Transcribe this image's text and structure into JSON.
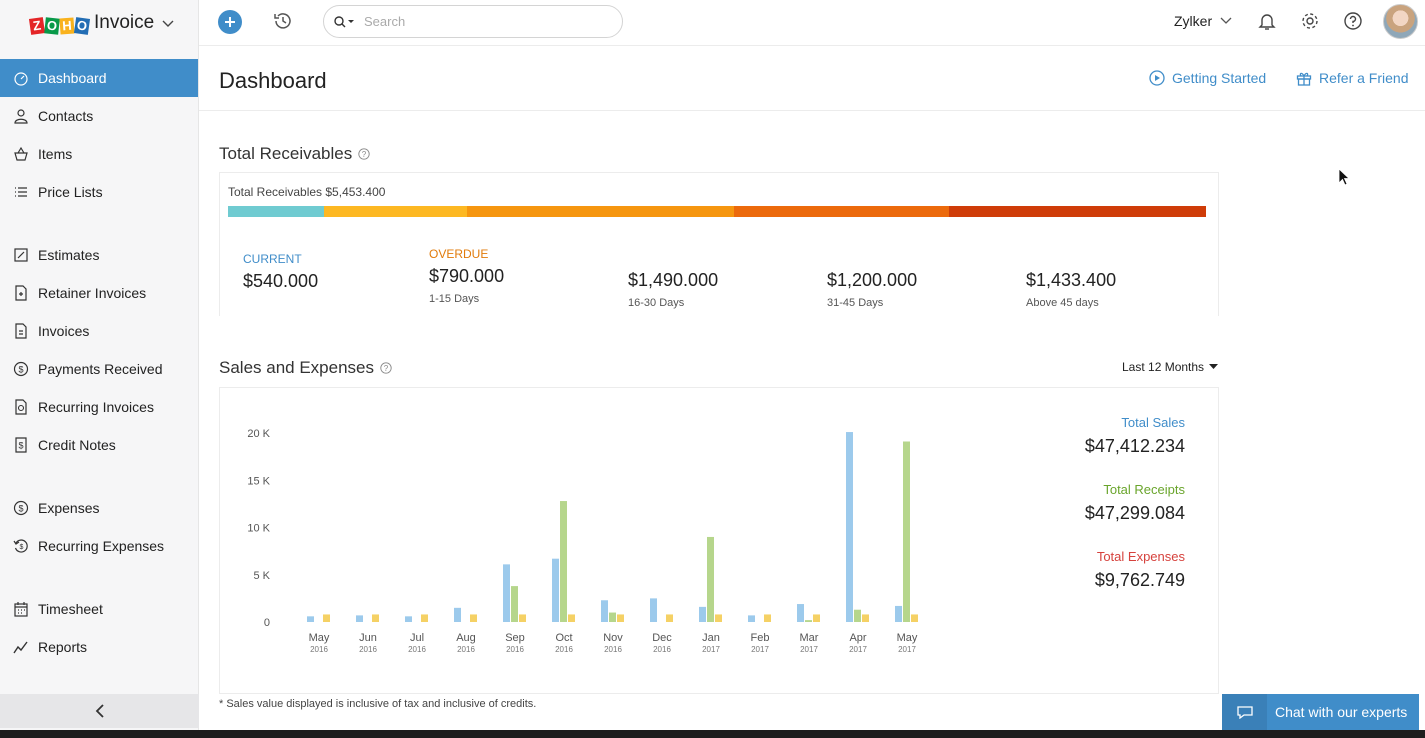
{
  "brand": {
    "logo_letters": [
      "Z",
      "O",
      "H",
      "O"
    ],
    "product": "Invoice"
  },
  "sidebar": {
    "groups": [
      [
        {
          "label": "Dashboard",
          "icon": "dashboard-icon",
          "active": true
        },
        {
          "label": "Contacts",
          "icon": "contacts-icon"
        },
        {
          "label": "Items",
          "icon": "items-icon"
        },
        {
          "label": "Price Lists",
          "icon": "price-list-icon"
        }
      ],
      [
        {
          "label": "Estimates",
          "icon": "estimates-icon"
        },
        {
          "label": "Retainer Invoices",
          "icon": "retainer-invoice-icon"
        },
        {
          "label": "Invoices",
          "icon": "invoice-icon"
        },
        {
          "label": "Payments Received",
          "icon": "payment-icon"
        },
        {
          "label": "Recurring Invoices",
          "icon": "recurring-invoice-icon"
        },
        {
          "label": "Credit Notes",
          "icon": "credit-note-icon"
        }
      ],
      [
        {
          "label": "Expenses",
          "icon": "expense-icon"
        },
        {
          "label": "Recurring Expenses",
          "icon": "recurring-expense-icon"
        }
      ],
      [
        {
          "label": "Timesheet",
          "icon": "timesheet-icon"
        },
        {
          "label": "Reports",
          "icon": "reports-icon"
        }
      ]
    ]
  },
  "topbar": {
    "search_placeholder": "Search",
    "org_name": "Zylker"
  },
  "page": {
    "title": "Dashboard",
    "getting_started": "Getting Started",
    "refer_friend": "Refer a Friend"
  },
  "receivables": {
    "title": "Total Receivables",
    "total_text": "Total Receivables $5,453.400",
    "current": {
      "label": "CURRENT",
      "amount": "$540.000"
    },
    "overdue_label": "OVERDUE",
    "buckets": [
      {
        "amount": "$790.000",
        "range": "1-15 Days"
      },
      {
        "amount": "$1,490.000",
        "range": "16-30 Days"
      },
      {
        "amount": "$1,200.000",
        "range": "31-45 Days"
      },
      {
        "amount": "$1,433.400",
        "range": "Above 45 days"
      }
    ],
    "bar_colors": [
      "#6fcbd1",
      "#fdb822",
      "#f6960f",
      "#ec6a0c",
      "#cf3c08"
    ],
    "label_colors": {
      "current": "#408dc9",
      "overdue": "#e17b0b"
    }
  },
  "sales": {
    "title": "Sales and Expenses",
    "range": "Last 12 Months",
    "totals": [
      {
        "label": "Total Sales",
        "value": "$47,412.234",
        "color": "#408dc9"
      },
      {
        "label": "Total Receipts",
        "value": "$47,299.084",
        "color": "#6aa52c"
      },
      {
        "label": "Total Expenses",
        "value": "$9,762.749",
        "color": "#d6423d"
      }
    ],
    "footnote": "* Sales value displayed is inclusive of tax and inclusive of credits."
  },
  "chart_data": {
    "type": "bar",
    "categories": [
      "May",
      "Jun",
      "Jul",
      "Aug",
      "Sep",
      "Oct",
      "Nov",
      "Dec",
      "Jan",
      "Feb",
      "Mar",
      "Apr",
      "May"
    ],
    "category_years": [
      "2016",
      "2016",
      "2016",
      "2016",
      "2016",
      "2016",
      "2016",
      "2016",
      "2017",
      "2017",
      "2017",
      "2017",
      "2017"
    ],
    "series": [
      {
        "name": "Total Sales",
        "color": "#9ccaec",
        "values": [
          600,
          700,
          600,
          1500,
          6100,
          6700,
          2300,
          2500,
          1600,
          700,
          1900,
          20100,
          1700
        ]
      },
      {
        "name": "Total Receipts",
        "color": "#b6d68c",
        "values": [
          0,
          0,
          0,
          0,
          3800,
          12800,
          1000,
          0,
          9000,
          0,
          200,
          1300,
          19100
        ]
      },
      {
        "name": "Total Expenses",
        "color": "#f5d165",
        "values": [
          800,
          800,
          800,
          800,
          800,
          800,
          800,
          800,
          800,
          800,
          800,
          800,
          800
        ]
      }
    ],
    "ytick_labels": [
      "0",
      "5 K",
      "10 K",
      "15 K",
      "20 K"
    ],
    "yticks": [
      0,
      5000,
      10000,
      15000,
      20000
    ],
    "ylim": [
      0,
      20000
    ],
    "grid": false,
    "xlabel": "",
    "ylabel": ""
  },
  "chat": {
    "label": "Chat with our experts"
  }
}
